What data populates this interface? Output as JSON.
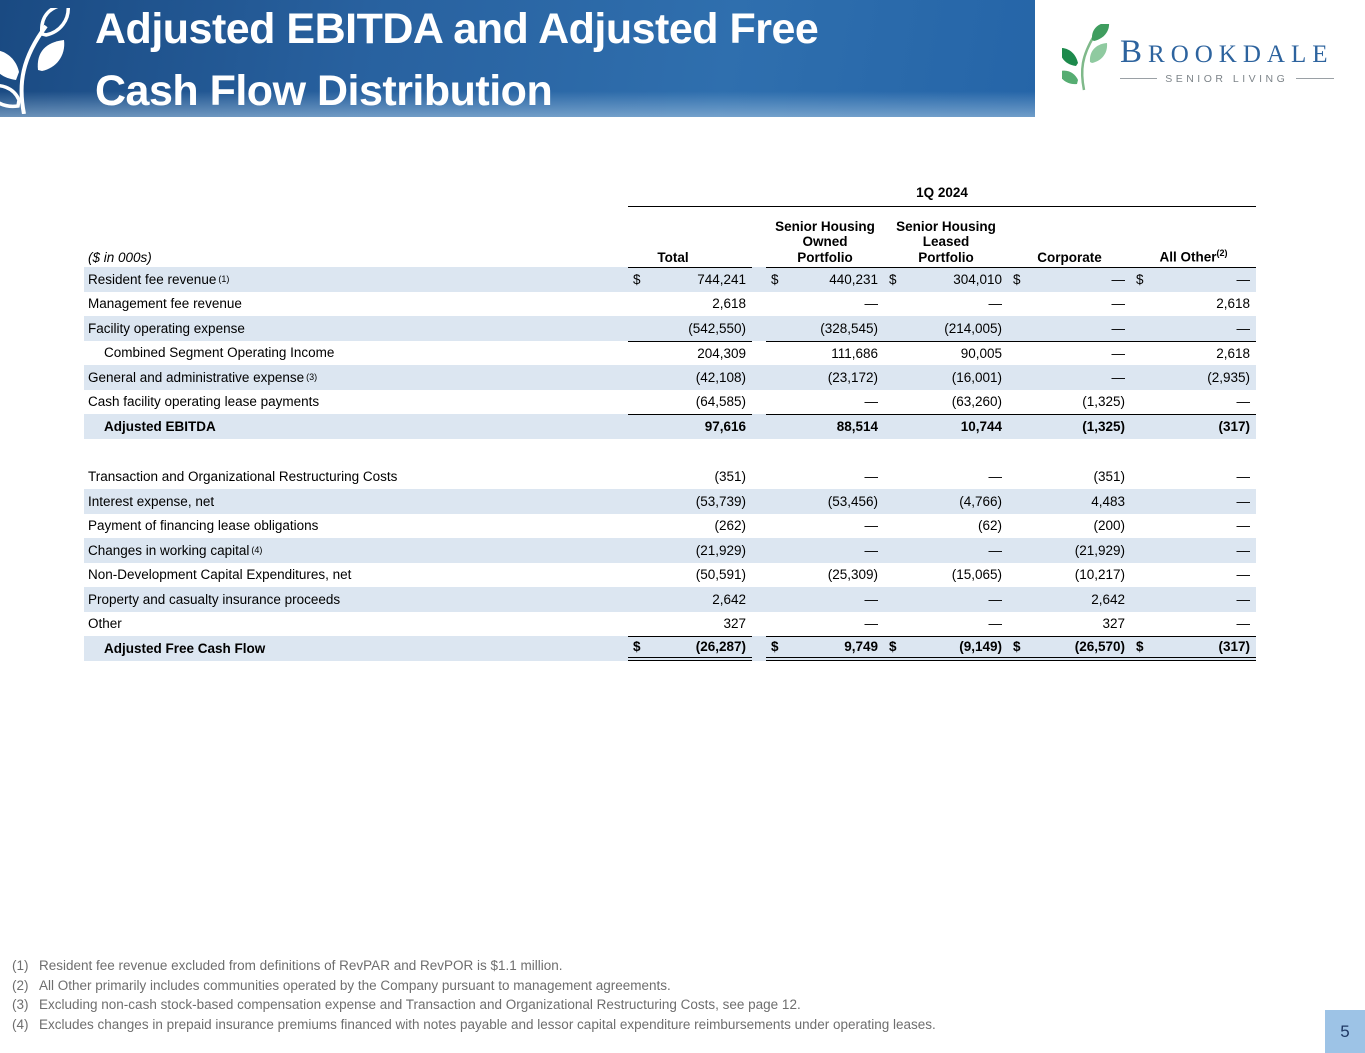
{
  "header": {
    "title_line1": "Adjusted EBITDA and Adjusted Free",
    "title_line2": "Cash Flow Distribution",
    "brand": {
      "name_first_letter": "B",
      "name_rest": "ROOKDALE",
      "tagline": "SENIOR LIVING"
    }
  },
  "table": {
    "period": "1Q 2024",
    "units_note": "($ in 000s)",
    "columns": [
      {
        "lines": [
          "Total"
        ]
      },
      {
        "lines": [
          "Senior Housing",
          "Owned",
          "Portfolio"
        ]
      },
      {
        "lines": [
          "Senior Housing",
          "Leased",
          "Portfolio"
        ]
      },
      {
        "lines": [
          "Corporate"
        ]
      },
      {
        "lines": [
          "All Other"
        ],
        "sup": "(2)"
      }
    ],
    "rows": [
      {
        "label": "Resident fee revenue",
        "sup": "(1)",
        "shade": true,
        "dollar": true,
        "rule_top": true,
        "values": [
          "744,241",
          "440,231",
          "304,010",
          "—",
          "—"
        ]
      },
      {
        "label": "Management fee revenue",
        "values": [
          "2,618",
          "—",
          "—",
          "—",
          "2,618"
        ]
      },
      {
        "label": "Facility operating expense",
        "shade": true,
        "values": [
          "(542,550)",
          "(328,545)",
          "(214,005)",
          "—",
          "—"
        ]
      },
      {
        "label": "Combined Segment Operating Income",
        "indent": true,
        "rule_top": true,
        "values": [
          "204,309",
          "111,686",
          "90,005",
          "—",
          "2,618"
        ]
      },
      {
        "label": "General and administrative expense",
        "sup": "(3)",
        "shade": true,
        "values": [
          "(42,108)",
          "(23,172)",
          "(16,001)",
          "—",
          "(2,935)"
        ]
      },
      {
        "label": "Cash facility operating lease payments",
        "values": [
          "(64,585)",
          "—",
          "(63,260)",
          "(1,325)",
          "—"
        ]
      },
      {
        "label": "Adjusted EBITDA",
        "indent": true,
        "bold": true,
        "shade": true,
        "rule_top": true,
        "values": [
          "97,616",
          "88,514",
          "10,744",
          "(1,325)",
          "(317)"
        ]
      },
      {
        "spacer": true
      },
      {
        "label": "Transaction and Organizational Restructuring Costs",
        "values": [
          "(351)",
          "—",
          "—",
          "(351)",
          "—"
        ]
      },
      {
        "label": "Interest expense, net",
        "shade": true,
        "values": [
          "(53,739)",
          "(53,456)",
          "(4,766)",
          "4,483",
          "—"
        ]
      },
      {
        "label": "Payment of financing lease obligations",
        "values": [
          "(262)",
          "—",
          "(62)",
          "(200)",
          "—"
        ]
      },
      {
        "label": "Changes in working capital",
        "sup": "(4)",
        "shade": true,
        "values": [
          "(21,929)",
          "—",
          "—",
          "(21,929)",
          "—"
        ]
      },
      {
        "label": "Non-Development Capital Expenditures, net",
        "values": [
          "(50,591)",
          "(25,309)",
          "(15,065)",
          "(10,217)",
          "—"
        ]
      },
      {
        "label": "Property and casualty insurance proceeds",
        "shade": true,
        "values": [
          "2,642",
          "—",
          "—",
          "2,642",
          "—"
        ]
      },
      {
        "label": "Other",
        "values": [
          "327",
          "—",
          "—",
          "327",
          "—"
        ]
      },
      {
        "label": "Adjusted Free Cash Flow",
        "indent": true,
        "bold": true,
        "shade": true,
        "dollar": true,
        "rule_top": true,
        "double_bottom": true,
        "values": [
          "(26,287)",
          "9,749",
          "(9,149)",
          "(26,570)",
          "(317)"
        ]
      }
    ]
  },
  "footnotes": [
    {
      "marker": "(1)",
      "text": "Resident fee revenue excluded from definitions of RevPAR and RevPOR is $1.1 million."
    },
    {
      "marker": "(2)",
      "text": "All Other primarily includes communities operated by the Company pursuant to management agreements."
    },
    {
      "marker": "(3)",
      "text": "Excluding non-cash stock-based compensation expense and Transaction and Organizational Restructuring Costs, see page 12."
    },
    {
      "marker": "(4)",
      "text": "Excludes changes in prepaid insurance premiums financed with notes payable and lessor capital expenditure reimbursements under operating leases."
    }
  ],
  "page_number": "5",
  "colors": {
    "band_gradient_start": "#1a4a82",
    "band_gradient_end": "#2f6fae",
    "row_stripe": "#dce6f1",
    "brand_blue": "#2d639e",
    "tagline_gray": "#7d8489",
    "footnote_gray": "#6e6e6e",
    "badge_bg": "#9dc3e6",
    "badge_text": "#1f3864",
    "rule_black": "#000000",
    "leaf_green_dark": "#1d8a4c",
    "leaf_green_light": "#8fcaa0"
  }
}
